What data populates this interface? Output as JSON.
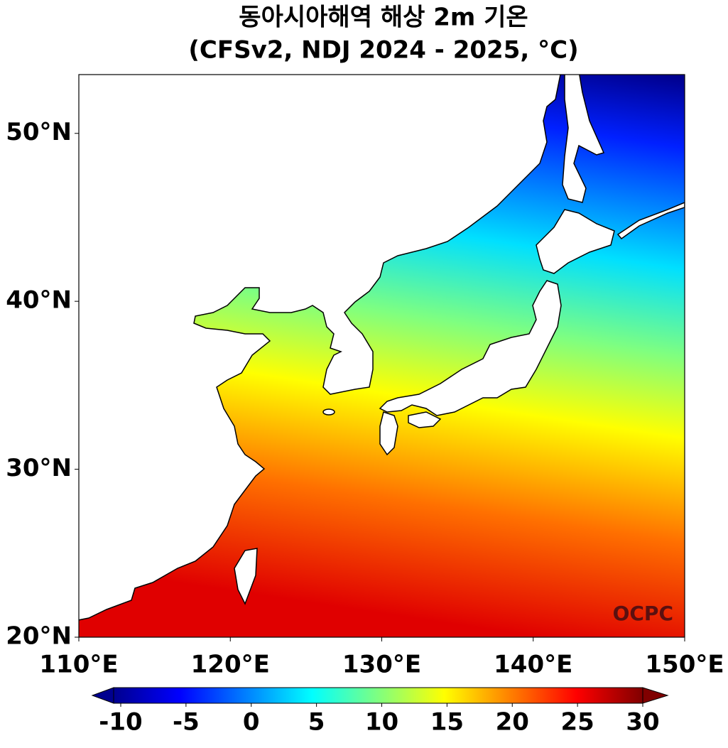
{
  "map": {
    "title": "동아시아해역 해상 2m 기온",
    "subtitle": "(CFSv2, NDJ 2024 - 2025, °C)",
    "xlim": [
      110,
      150
    ],
    "ylim": [
      20,
      53.5
    ],
    "xticks": [
      {
        "value": 110,
        "label": "110°E"
      },
      {
        "value": 120,
        "label": "120°E"
      },
      {
        "value": 130,
        "label": "130°E"
      },
      {
        "value": 140,
        "label": "140°E"
      },
      {
        "value": 150,
        "label": "150°E"
      }
    ],
    "yticks": [
      {
        "value": 20,
        "label": "20°N"
      },
      {
        "value": 30,
        "label": "30°N"
      },
      {
        "value": 40,
        "label": "40°N"
      },
      {
        "value": 50,
        "label": "50°N"
      }
    ],
    "colorbar": {
      "lim": [
        -10,
        30
      ],
      "ticks": [
        -10,
        -5,
        0,
        5,
        10,
        15,
        20,
        25,
        30
      ]
    },
    "watermark": "OCPC"
  }
}
